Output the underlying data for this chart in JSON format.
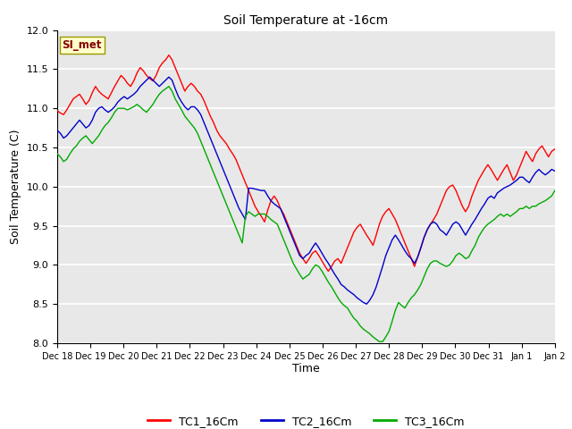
{
  "title": "Soil Temperature at -16cm",
  "xlabel": "Time",
  "ylabel": "Soil Temperature (C)",
  "ylim": [
    8.0,
    12.0
  ],
  "yticks": [
    8.0,
    8.5,
    9.0,
    9.5,
    10.0,
    10.5,
    11.0,
    11.5,
    12.0
  ],
  "xtick_labels": [
    "Dec 18",
    "Dec 19",
    "Dec 20",
    "Dec 21",
    "Dec 22",
    "Dec 23",
    "Dec 24",
    "Dec 25",
    "Dec 26",
    "Dec 27",
    "Dec 28",
    "Dec 29",
    "Dec 30",
    "Dec 31",
    "Jan 1",
    "Jan 2"
  ],
  "colors": {
    "TC1": "#ff0000",
    "TC2": "#0000cc",
    "TC3": "#00aa00",
    "background": "#e8e8e8",
    "grid": "#ffffff"
  },
  "legend_label": "SI_met",
  "legend_box_facecolor": "#ffffcc",
  "legend_box_edgecolor": "#999900",
  "legend_text_color": "#880000",
  "series_labels": [
    "TC1_16Cm",
    "TC2_16Cm",
    "TC3_16Cm"
  ],
  "TC1_16Cm": [
    10.97,
    10.94,
    10.92,
    10.98,
    11.05,
    11.12,
    11.15,
    11.18,
    11.12,
    11.05,
    11.1,
    11.2,
    11.28,
    11.22,
    11.18,
    11.15,
    11.12,
    11.2,
    11.28,
    11.35,
    11.42,
    11.38,
    11.32,
    11.28,
    11.35,
    11.45,
    11.52,
    11.48,
    11.42,
    11.38,
    11.35,
    11.42,
    11.52,
    11.58,
    11.62,
    11.68,
    11.62,
    11.52,
    11.42,
    11.32,
    11.22,
    11.28,
    11.32,
    11.28,
    11.22,
    11.18,
    11.1,
    11.0,
    10.9,
    10.82,
    10.72,
    10.65,
    10.6,
    10.55,
    10.48,
    10.42,
    10.35,
    10.25,
    10.15,
    10.05,
    9.95,
    9.85,
    9.75,
    9.68,
    9.62,
    9.55,
    9.7,
    9.82,
    9.88,
    9.82,
    9.72,
    9.65,
    9.55,
    9.45,
    9.35,
    9.25,
    9.15,
    9.08,
    9.02,
    9.08,
    9.15,
    9.18,
    9.12,
    9.05,
    8.98,
    8.92,
    8.98,
    9.05,
    9.08,
    9.02,
    9.12,
    9.22,
    9.32,
    9.42,
    9.48,
    9.52,
    9.45,
    9.38,
    9.32,
    9.25,
    9.38,
    9.52,
    9.62,
    9.68,
    9.72,
    9.65,
    9.58,
    9.48,
    9.38,
    9.28,
    9.18,
    9.08,
    8.98,
    9.1,
    9.22,
    9.35,
    9.45,
    9.52,
    9.58,
    9.65,
    9.75,
    9.85,
    9.95,
    10.0,
    10.02,
    9.95,
    9.85,
    9.75,
    9.68,
    9.75,
    9.88,
    9.98,
    10.08,
    10.15,
    10.22,
    10.28,
    10.22,
    10.15,
    10.08,
    10.15,
    10.22,
    10.28,
    10.18,
    10.08,
    10.15,
    10.25,
    10.35,
    10.45,
    10.38,
    10.32,
    10.42,
    10.48,
    10.52,
    10.45,
    10.38,
    10.45,
    10.48
  ],
  "TC2_16Cm": [
    10.72,
    10.68,
    10.62,
    10.65,
    10.7,
    10.75,
    10.8,
    10.85,
    10.8,
    10.75,
    10.78,
    10.85,
    10.95,
    11.0,
    11.02,
    10.98,
    10.95,
    10.98,
    11.02,
    11.08,
    11.12,
    11.15,
    11.12,
    11.15,
    11.18,
    11.22,
    11.28,
    11.32,
    11.36,
    11.4,
    11.36,
    11.32,
    11.28,
    11.32,
    11.36,
    11.4,
    11.36,
    11.25,
    11.15,
    11.08,
    11.02,
    10.98,
    11.02,
    11.02,
    10.98,
    10.92,
    10.82,
    10.72,
    10.62,
    10.52,
    10.42,
    10.32,
    10.22,
    10.12,
    10.02,
    9.92,
    9.82,
    9.72,
    9.65,
    9.58,
    9.98,
    9.98,
    9.97,
    9.96,
    9.95,
    9.95,
    9.88,
    9.82,
    9.78,
    9.75,
    9.72,
    9.62,
    9.52,
    9.42,
    9.32,
    9.22,
    9.12,
    9.08,
    9.12,
    9.15,
    9.22,
    9.28,
    9.22,
    9.15,
    9.08,
    9.02,
    8.95,
    8.88,
    8.82,
    8.75,
    8.72,
    8.68,
    8.65,
    8.62,
    8.58,
    8.55,
    8.52,
    8.5,
    8.55,
    8.62,
    8.72,
    8.85,
    8.98,
    9.12,
    9.22,
    9.32,
    9.38,
    9.32,
    9.25,
    9.18,
    9.12,
    9.08,
    9.02,
    9.1,
    9.22,
    9.35,
    9.45,
    9.52,
    9.55,
    9.52,
    9.45,
    9.42,
    9.38,
    9.45,
    9.52,
    9.55,
    9.52,
    9.45,
    9.38,
    9.45,
    9.52,
    9.58,
    9.65,
    9.72,
    9.78,
    9.85,
    9.88,
    9.85,
    9.92,
    9.95,
    9.98,
    10.0,
    10.02,
    10.05,
    10.08,
    10.12,
    10.12,
    10.08,
    10.05,
    10.12,
    10.18,
    10.22,
    10.18,
    10.15,
    10.18,
    10.22,
    10.2
  ],
  "TC3_16Cm": [
    10.42,
    10.38,
    10.32,
    10.35,
    10.42,
    10.48,
    10.52,
    10.58,
    10.62,
    10.65,
    10.6,
    10.55,
    10.6,
    10.65,
    10.72,
    10.78,
    10.82,
    10.88,
    10.95,
    11.0,
    11.0,
    11.0,
    10.98,
    11.0,
    11.02,
    11.05,
    11.02,
    10.98,
    10.95,
    11.0,
    11.05,
    11.12,
    11.18,
    11.22,
    11.25,
    11.28,
    11.22,
    11.12,
    11.05,
    10.98,
    10.9,
    10.85,
    10.8,
    10.75,
    10.68,
    10.58,
    10.48,
    10.38,
    10.28,
    10.18,
    10.08,
    9.98,
    9.88,
    9.78,
    9.68,
    9.58,
    9.48,
    9.38,
    9.28,
    9.62,
    9.68,
    9.65,
    9.62,
    9.65,
    9.65,
    9.65,
    9.62,
    9.58,
    9.55,
    9.52,
    9.42,
    9.32,
    9.22,
    9.12,
    9.02,
    8.95,
    8.88,
    8.82,
    8.85,
    8.88,
    8.95,
    9.0,
    8.98,
    8.92,
    8.85,
    8.78,
    8.72,
    8.65,
    8.58,
    8.52,
    8.48,
    8.45,
    8.38,
    8.32,
    8.28,
    8.22,
    8.18,
    8.15,
    8.12,
    8.08,
    8.05,
    8.02,
    8.02,
    8.08,
    8.15,
    8.28,
    8.42,
    8.52,
    8.48,
    8.45,
    8.52,
    8.58,
    8.62,
    8.68,
    8.75,
    8.85,
    8.95,
    9.02,
    9.05,
    9.05,
    9.02,
    9.0,
    8.98,
    9.0,
    9.05,
    9.12,
    9.15,
    9.12,
    9.08,
    9.1,
    9.18,
    9.25,
    9.35,
    9.42,
    9.48,
    9.52,
    9.55,
    9.58,
    9.62,
    9.65,
    9.62,
    9.65,
    9.62,
    9.65,
    9.68,
    9.72,
    9.72,
    9.75,
    9.72,
    9.75,
    9.75,
    9.78,
    9.8,
    9.82,
    9.85,
    9.88,
    9.95
  ]
}
